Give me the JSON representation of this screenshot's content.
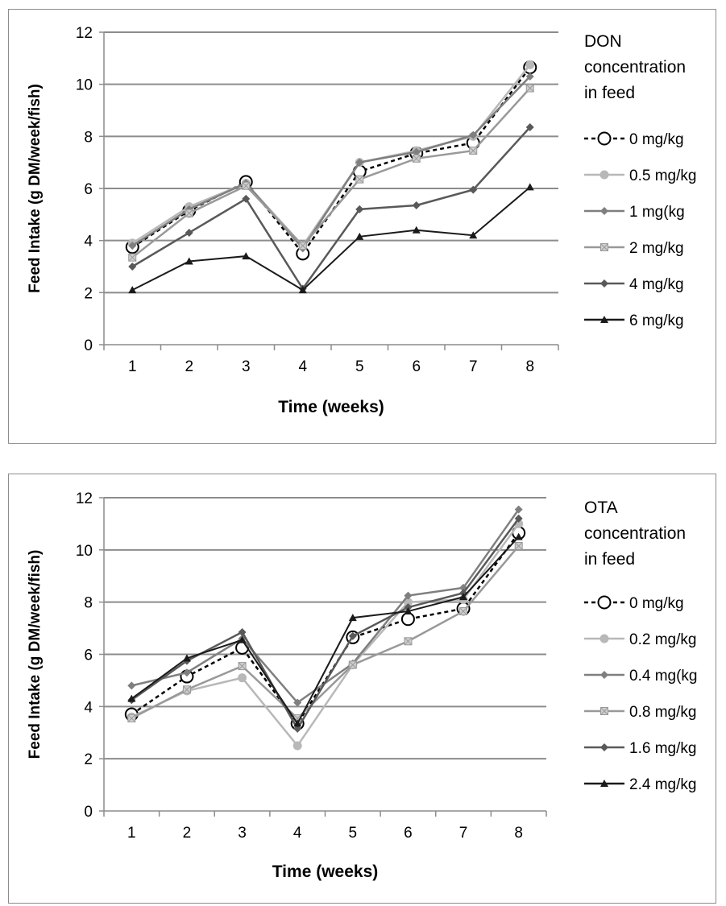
{
  "chart_data": [
    {
      "type": "line",
      "ylabel": "Feed Intake (g DM/week/fish)",
      "xlabel": "Time (weeks)",
      "ylim": [
        0,
        12
      ],
      "yticks": [
        0,
        2,
        4,
        6,
        8,
        10,
        12
      ],
      "categories": [
        "1",
        "2",
        "3",
        "4",
        "5",
        "6",
        "7",
        "8"
      ],
      "grid": "horizontal",
      "legend_position": "right",
      "legend_title": [
        "DON",
        "concentration",
        "in feed"
      ],
      "series": [
        {
          "name": "0 mg/kg",
          "color": "#000000",
          "marker": "circle-open",
          "dash": true,
          "values": [
            3.75,
            5.15,
            6.25,
            3.5,
            6.65,
            7.35,
            7.75,
            10.65
          ]
        },
        {
          "name": "0.5 mg/kg",
          "color": "#b8b8b8",
          "marker": "circle",
          "dash": false,
          "values": [
            3.9,
            5.3,
            6.2,
            3.8,
            7.0,
            7.45,
            8.0,
            10.75
          ]
        },
        {
          "name": "1 mg(kg",
          "color": "#7f7f7f",
          "marker": "diamond",
          "dash": false,
          "values": [
            3.8,
            5.2,
            6.2,
            3.7,
            7.0,
            7.4,
            8.05,
            10.3
          ]
        },
        {
          "name": "2 mg/kg",
          "color": "#999999",
          "marker": "square-x",
          "dash": false,
          "values": [
            3.35,
            5.05,
            6.1,
            3.8,
            6.35,
            7.15,
            7.45,
            9.85
          ]
        },
        {
          "name": "4 mg/kg",
          "color": "#595959",
          "marker": "diamond",
          "dash": false,
          "values": [
            3.0,
            4.3,
            5.6,
            2.15,
            5.2,
            5.35,
            5.95,
            8.35
          ]
        },
        {
          "name": "6 mg/kg",
          "color": "#1a1a1a",
          "marker": "triangle",
          "dash": false,
          "values": [
            2.1,
            3.2,
            3.4,
            2.1,
            4.15,
            4.4,
            4.2,
            6.05
          ]
        }
      ]
    },
    {
      "type": "line",
      "ylabel": "Feed Intake (g DM/week/fish)",
      "xlabel": "Time (weeks)",
      "ylim": [
        0,
        12
      ],
      "yticks": [
        0,
        2,
        4,
        6,
        8,
        10,
        12
      ],
      "categories": [
        "1",
        "2",
        "3",
        "4",
        "5",
        "6",
        "7",
        "8"
      ],
      "grid": "horizontal",
      "legend_position": "right",
      "legend_title": [
        "OTA",
        "concentration",
        "in feed"
      ],
      "series": [
        {
          "name": "0 mg/kg",
          "color": "#000000",
          "marker": "circle-open",
          "dash": true,
          "values": [
            3.7,
            5.15,
            6.25,
            3.35,
            6.65,
            7.35,
            7.75,
            10.65
          ]
        },
        {
          "name": "0.2 mg/kg",
          "color": "#b8b8b8",
          "marker": "circle",
          "dash": false,
          "values": [
            3.6,
            4.6,
            5.1,
            2.5,
            5.6,
            8.0,
            8.1,
            11.0
          ]
        },
        {
          "name": "0.4 mg(kg",
          "color": "#7f7f7f",
          "marker": "diamond",
          "dash": false,
          "values": [
            4.8,
            5.3,
            6.6,
            4.15,
            5.65,
            8.25,
            8.55,
            11.55
          ]
        },
        {
          "name": "0.8 mg/kg",
          "color": "#999999",
          "marker": "square-x",
          "dash": false,
          "values": [
            3.55,
            4.65,
            5.55,
            3.55,
            5.6,
            6.5,
            7.65,
            10.15
          ]
        },
        {
          "name": "1.6 mg/kg",
          "color": "#595959",
          "marker": "diamond",
          "dash": false,
          "values": [
            4.25,
            5.75,
            6.85,
            3.15,
            6.7,
            7.8,
            8.35,
            11.2
          ]
        },
        {
          "name": "2.4 mg/kg",
          "color": "#1a1a1a",
          "marker": "triangle",
          "dash": false,
          "values": [
            4.3,
            5.85,
            6.55,
            3.35,
            7.4,
            7.65,
            8.2,
            10.5
          ]
        }
      ]
    }
  ]
}
